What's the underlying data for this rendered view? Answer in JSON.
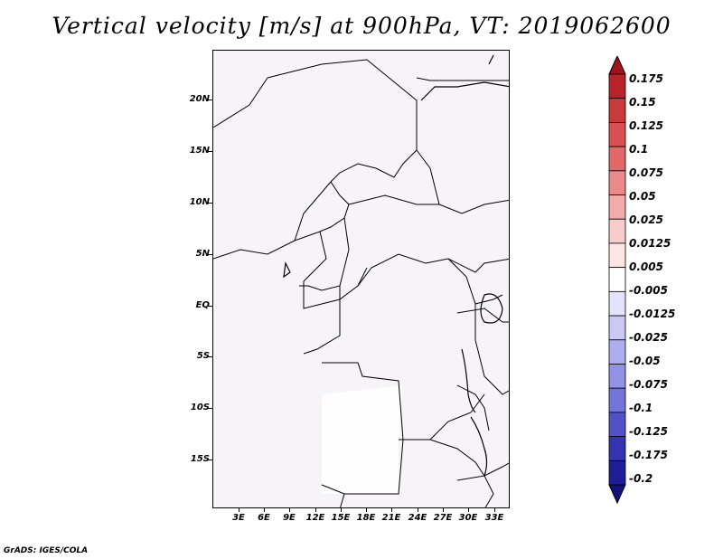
{
  "title": "Vertical velocity [m/s] at 900hPa, VT: 2019062600",
  "footer": "GrADS: IGES/COLA",
  "map": {
    "field": "Vertical velocity",
    "level": "900hPa",
    "valid_time": "2019062600",
    "lat_ticks": [
      "20N",
      "15N",
      "10N",
      "5N",
      "EQ",
      "5S",
      "10S",
      "15S"
    ],
    "lon_ticks": [
      "3E",
      "6E",
      "9E",
      "12E",
      "15E",
      "18E",
      "21E",
      "24E",
      "27E",
      "30E",
      "33E"
    ]
  },
  "colorbar": {
    "labels": [
      "0.175",
      "0.15",
      "0.125",
      "0.1",
      "0.075",
      "0.05",
      "0.025",
      "0.0125",
      "0.005",
      "-0.005",
      "-0.0125",
      "-0.025",
      "-0.05",
      "-0.075",
      "-0.1",
      "-0.125",
      "-0.175",
      "-0.2"
    ],
    "colors": [
      "#a0141e",
      "#b8232a",
      "#c93a3a",
      "#d95050",
      "#e26969",
      "#ea8a8a",
      "#f2abab",
      "#f8cccc",
      "#fde6e6",
      "#ffffff",
      "#e3e3fb",
      "#c9c9f4",
      "#aeaeee",
      "#9393e6",
      "#7474d9",
      "#5252c6",
      "#3434b0",
      "#1e1e96",
      "#12127a"
    ]
  }
}
